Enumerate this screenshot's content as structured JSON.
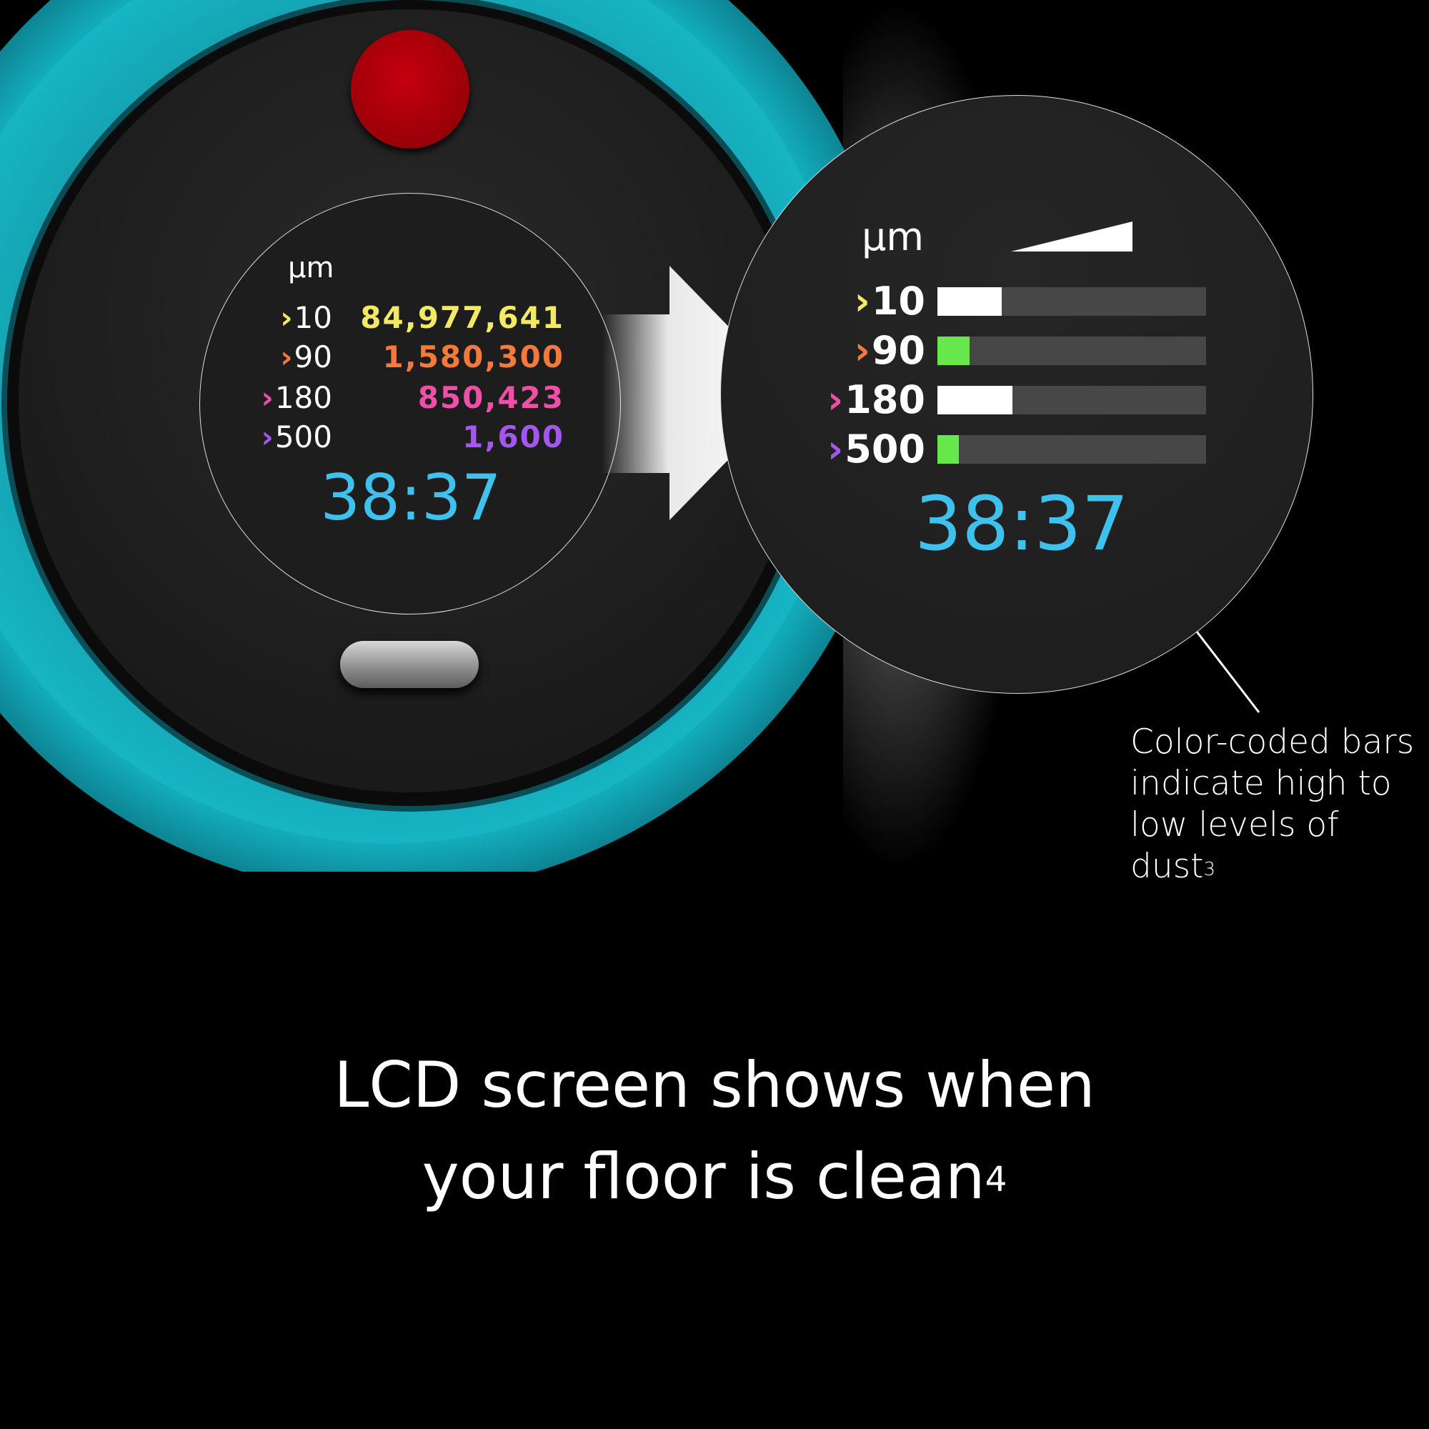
{
  "colors": {
    "yellow": "#f2e964",
    "orange": "#f47a3c",
    "pink": "#ef4fa6",
    "purple": "#a457ef",
    "timer_blue": "#3fc1ee",
    "bar_green": "#66e84c",
    "bar_white": "#ffffff",
    "bar_track": "#474747",
    "device_teal": "#16c3d4",
    "button_red": "#b3000c"
  },
  "small_screen": {
    "unit": "µm",
    "rows": [
      {
        "chevron": "›",
        "size": "10",
        "count": "84,977,641",
        "color": "#f2e964"
      },
      {
        "chevron": "›",
        "size": "90",
        "count": "1,580,300",
        "color": "#f47a3c"
      },
      {
        "chevron": "›",
        "size": "180",
        "count": "850,423",
        "color": "#ef4fa6"
      },
      {
        "chevron": "›",
        "size": "500",
        "count": "1,600",
        "color": "#a457ef"
      }
    ],
    "timer": "38:37"
  },
  "big_screen": {
    "unit": "µm",
    "icon": "rising-level-wedge-icon",
    "rows": [
      {
        "chevron": "›",
        "size": "10",
        "level": 0.24,
        "bar_color": "#ffffff",
        "chevron_color": "#f2e964"
      },
      {
        "chevron": "›",
        "size": "90",
        "level": 0.12,
        "bar_color": "#66e84c",
        "chevron_color": "#f47a3c"
      },
      {
        "chevron": "›",
        "size": "180",
        "level": 0.28,
        "bar_color": "#ffffff",
        "chevron_color": "#ef4fa6"
      },
      {
        "chevron": "›",
        "size": "500",
        "level": 0.08,
        "bar_color": "#66e84c",
        "chevron_color": "#a457ef"
      }
    ],
    "timer": "38:37"
  },
  "callout": {
    "lines": [
      "Color-coded bars",
      "indicate high to",
      "low levels of dust"
    ],
    "footnote": "3"
  },
  "headline": {
    "line1": "LCD screen shows when",
    "line2": "your floor is clean",
    "footnote": "4"
  }
}
